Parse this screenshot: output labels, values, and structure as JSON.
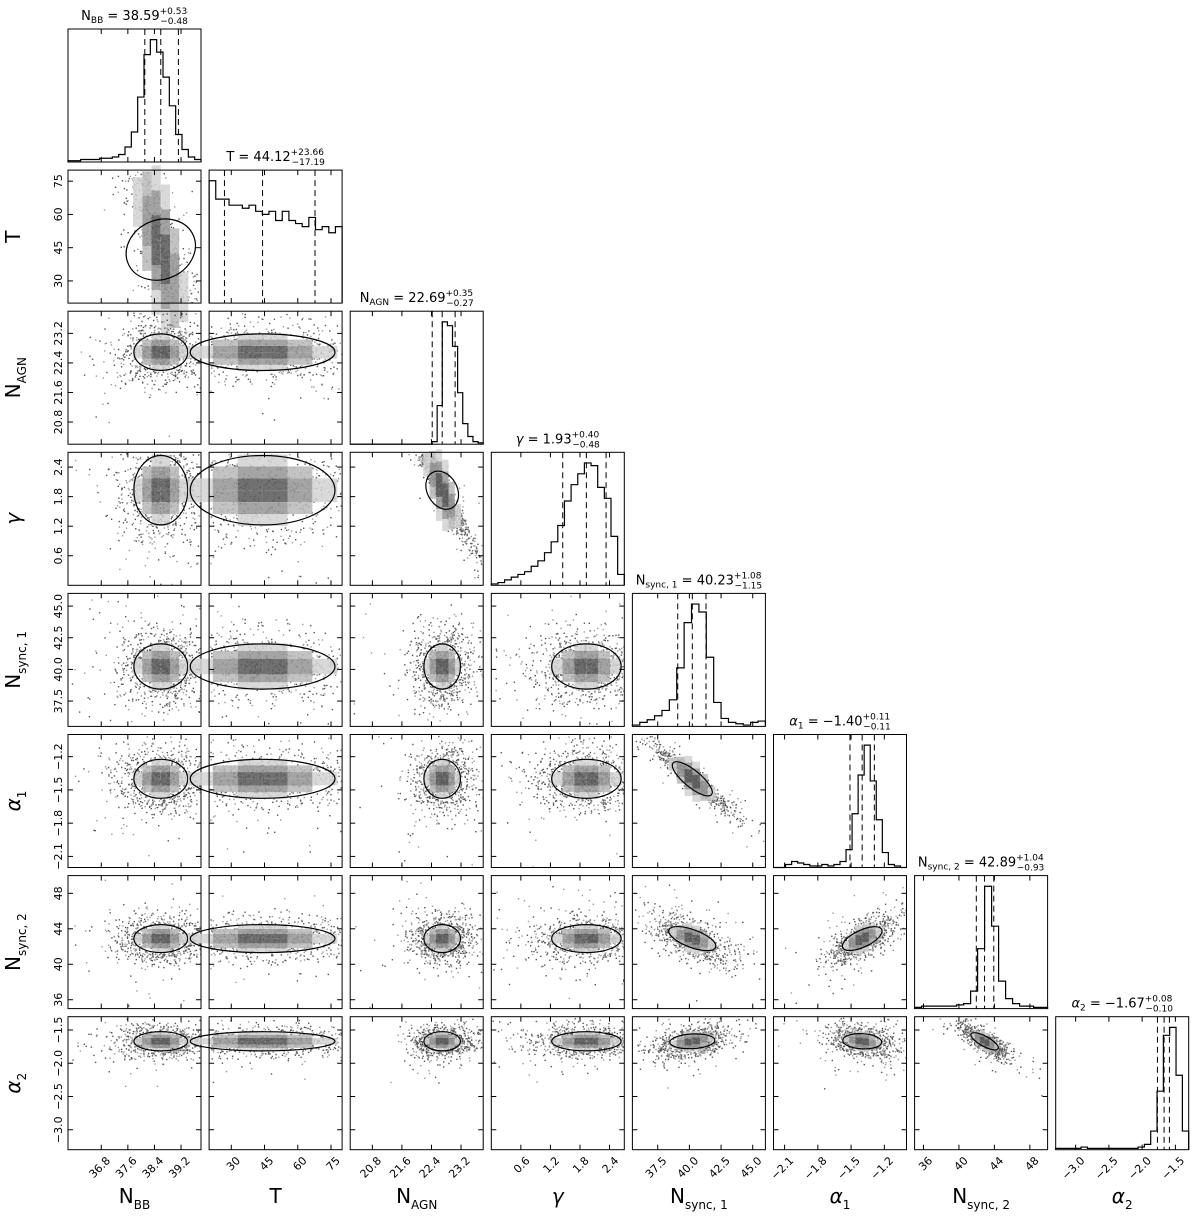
{
  "chart_data": {
    "type": "corner",
    "parameters": [
      {
        "id": "nbb",
        "label": "N",
        "label_sub": "BB",
        "label_italic": false,
        "range": [
          35.8,
          39.8
        ],
        "ticks": [
          36.8,
          37.6,
          38.4,
          39.2
        ],
        "ticks_fmt": [
          "36.8",
          "37.6",
          "38.4",
          "39.2"
        ],
        "title": "N",
        "title_sub": "BB",
        "median": 38.59,
        "plus": 0.53,
        "minus": 0.48,
        "median_fmt": "38.59",
        "plus_fmt": "+0.53",
        "minus_fmt": "−0.48",
        "quantiles": [
          38.11,
          38.59,
          39.12
        ]
      },
      {
        "id": "t",
        "label": "T",
        "label_sub": "",
        "label_italic": false,
        "range": [
          20,
          80
        ],
        "ticks": [
          30,
          45,
          60,
          75
        ],
        "ticks_fmt": [
          "30",
          "45",
          "60",
          "75"
        ],
        "title": "T",
        "title_sub": "",
        "median": 44.12,
        "plus": 23.66,
        "minus": 17.19,
        "median_fmt": "44.12",
        "plus_fmt": "+23.66",
        "minus_fmt": "−17.19",
        "quantiles": [
          26.93,
          44.12,
          67.78
        ]
      },
      {
        "id": "nagn",
        "label": "N",
        "label_sub": "AGN",
        "label_italic": false,
        "range": [
          20.2,
          23.8
        ],
        "ticks": [
          20.8,
          21.6,
          22.4,
          23.2
        ],
        "ticks_fmt": [
          "20.8",
          "21.6",
          "22.4",
          "23.2"
        ],
        "title": "N",
        "title_sub": "AGN",
        "median": 22.69,
        "plus": 0.35,
        "minus": 0.27,
        "median_fmt": "22.69",
        "plus_fmt": "+0.35",
        "minus_fmt": "−0.27",
        "quantiles": [
          22.42,
          22.69,
          23.04
        ]
      },
      {
        "id": "gamma",
        "label": "γ",
        "label_sub": "",
        "label_italic": true,
        "range": [
          0.0,
          2.7
        ],
        "ticks": [
          0.6,
          1.2,
          1.8,
          2.4
        ],
        "ticks_fmt": [
          "0.6",
          "1.2",
          "1.8",
          "2.4"
        ],
        "title": "γ",
        "title_sub": "",
        "median": 1.93,
        "plus": 0.4,
        "minus": 0.48,
        "median_fmt": "1.93",
        "plus_fmt": "+0.40",
        "minus_fmt": "−0.48",
        "quantiles": [
          1.45,
          1.93,
          2.33
        ]
      },
      {
        "id": "ns1",
        "label": "N",
        "label_sub": "sync, 1",
        "label_italic": false,
        "range": [
          35.5,
          46.0
        ],
        "ticks": [
          37.5,
          40.0,
          42.5,
          45.0
        ],
        "ticks_fmt": [
          "37.5",
          "40.0",
          "42.5",
          "45.0"
        ],
        "title": "N",
        "title_sub": "sync, 1",
        "median": 40.23,
        "plus": 1.08,
        "minus": 1.15,
        "median_fmt": "40.23",
        "plus_fmt": "+1.08",
        "minus_fmt": "−1.15",
        "quantiles": [
          39.08,
          40.23,
          41.31
        ]
      },
      {
        "id": "a1",
        "label": "α",
        "label_sub": "1",
        "label_italic": true,
        "range": [
          -2.2,
          -1.0
        ],
        "ticks": [
          -2.1,
          -1.8,
          -1.5,
          -1.2
        ],
        "ticks_fmt": [
          "−2.1",
          "−1.8",
          "−1.5",
          "−1.2"
        ],
        "title": "α",
        "title_sub": "1",
        "median": -1.4,
        "plus": 0.11,
        "minus": 0.11,
        "median_fmt": "−1.40",
        "plus_fmt": "+0.11",
        "minus_fmt": "−0.11",
        "quantiles": [
          -1.51,
          -1.4,
          -1.29
        ]
      },
      {
        "id": "ns2",
        "label": "N",
        "label_sub": "sync, 2",
        "label_italic": false,
        "range": [
          35,
          50
        ],
        "ticks": [
          36,
          40,
          44,
          48
        ],
        "ticks_fmt": [
          "36",
          "40",
          "44",
          "48"
        ],
        "title": "N",
        "title_sub": "sync, 2",
        "median": 42.89,
        "plus": 1.04,
        "minus": 0.93,
        "median_fmt": "42.89",
        "plus_fmt": "+1.04",
        "minus_fmt": "−0.93",
        "quantiles": [
          41.96,
          42.89,
          43.93
        ]
      },
      {
        "id": "a2",
        "label": "α",
        "label_sub": "2",
        "label_italic": true,
        "range": [
          -3.3,
          -1.3
        ],
        "ticks": [
          -3.0,
          -2.5,
          -2.0,
          -1.5
        ],
        "ticks_fmt": [
          "−3.0",
          "−2.5",
          "−2.0",
          "−1.5"
        ],
        "title": "α",
        "title_sub": "2",
        "median": -1.67,
        "plus": 0.08,
        "minus": 0.1,
        "median_fmt": "−1.67",
        "plus_fmt": "+0.08",
        "minus_fmt": "−0.10",
        "quantiles": [
          -1.77,
          -1.67,
          -1.59
        ]
      }
    ],
    "histograms": {
      "nbb": [
        1,
        1,
        2,
        2,
        2,
        3,
        3,
        4,
        6,
        12,
        24,
        52,
        86,
        98,
        88,
        68,
        45,
        22,
        10,
        4,
        2
      ],
      "t": [
        80,
        68,
        68,
        64,
        64,
        62,
        64,
        60,
        58,
        60,
        54,
        60,
        54,
        52,
        50,
        56,
        48,
        50,
        46,
        50
      ],
      "nagn": [
        0,
        0,
        0,
        0,
        0,
        0,
        0,
        0,
        0,
        0,
        0,
        0,
        0,
        0,
        0,
        0,
        2,
        30,
        95,
        92,
        76,
        40,
        16,
        6,
        2,
        1
      ],
      "gamma": [
        1,
        2,
        4,
        6,
        8,
        10,
        14,
        18,
        24,
        32,
        44,
        62,
        74,
        82,
        90,
        88,
        72,
        64,
        36,
        8
      ],
      "ns1": [
        1,
        3,
        5,
        8,
        12,
        20,
        44,
        78,
        92,
        86,
        52,
        18,
        6,
        3,
        2,
        1,
        3,
        4
      ],
      "a1": [
        0,
        0,
        2,
        4,
        3,
        2,
        1,
        1,
        2,
        1,
        2,
        4,
        12,
        36,
        62,
        82,
        58,
        32,
        10,
        2,
        1,
        0
      ],
      "ns2": [
        1,
        2,
        2,
        2,
        2,
        2,
        3,
        4,
        14,
        48,
        98,
        66,
        22,
        8,
        4,
        2,
        2,
        1,
        1
      ],
      "a2": [
        1,
        1,
        1,
        1,
        2,
        1,
        1,
        1,
        1,
        1,
        1,
        1,
        1,
        2,
        4,
        14,
        44,
        86,
        92,
        56,
        14
      ]
    },
    "axis_labels_note": "Bottom x-axis labels: N_BB, T, N_AGN, γ, N_sync,1, α1, N_sync,2, α2; left y-axis labels: T, N_AGN, γ, N_sync,1, α1, N_sync,2, α2",
    "grid": false,
    "legend": "none"
  }
}
